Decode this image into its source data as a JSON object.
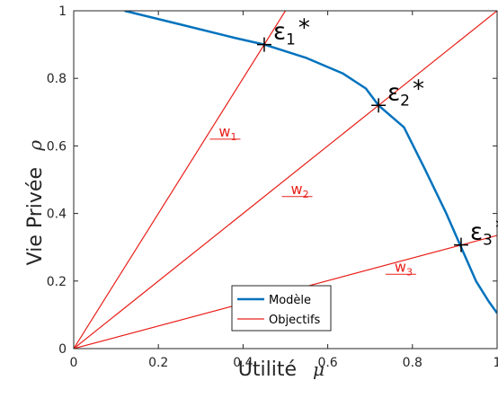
{
  "chart_data": {
    "type": "line",
    "xlabel": "Utilité",
    "xlabel_symbol": "μ",
    "ylabel": "Vie Privée",
    "ylabel_symbol": "ρ",
    "xlim": [
      0,
      1
    ],
    "ylim": [
      0,
      1
    ],
    "xticks": [
      "0",
      "0.2",
      "0.4",
      "0.6",
      "0.8",
      "1"
    ],
    "yticks": [
      "0",
      "0.2",
      "0.4",
      "0.6",
      "0.8",
      "1"
    ],
    "grid": false,
    "legend_position": "bottom-center",
    "legend": [
      {
        "name": "Modèle",
        "color": "#0072BD"
      },
      {
        "name": "Objectifs",
        "color": "#E8201A"
      }
    ],
    "series": [
      {
        "name": "Modèle",
        "color": "#0072BD",
        "x": [
          0.12,
          0.25,
          0.38,
          0.45,
          0.55,
          0.635,
          0.69,
          0.72,
          0.78,
          0.83,
          0.88,
          0.915,
          0.95,
          0.98,
          1.0
        ],
        "y": [
          1.0,
          0.96,
          0.92,
          0.9,
          0.86,
          0.815,
          0.77,
          0.72,
          0.655,
          0.53,
          0.4,
          0.3,
          0.2,
          0.14,
          0.105
        ]
      },
      {
        "name": "Objectifs",
        "color": "#E8201A",
        "lines": [
          {
            "label": "w",
            "sub": "1",
            "x": [
              0,
              0.5
            ],
            "y": [
              0,
              1.0
            ],
            "label_at": [
              0.33,
              0.62
            ]
          },
          {
            "label": "w",
            "sub": "2",
            "x": [
              0,
              1.0
            ],
            "y": [
              0,
              1.0
            ],
            "label_at": [
              0.5,
              0.45
            ]
          },
          {
            "label": "w",
            "sub": "3",
            "x": [
              0,
              1.0
            ],
            "y": [
              0,
              0.335
            ],
            "label_at": [
              0.745,
              0.22
            ]
          }
        ]
      }
    ],
    "points": [
      {
        "label": "ε",
        "sub": "1",
        "sup": "*",
        "x": 0.45,
        "y": 0.9
      },
      {
        "label": "ε",
        "sub": "2",
        "sup": "*",
        "x": 0.72,
        "y": 0.72
      },
      {
        "label": "ε",
        "sub": "3",
        "sup": "*",
        "x": 0.915,
        "y": 0.307
      }
    ]
  }
}
